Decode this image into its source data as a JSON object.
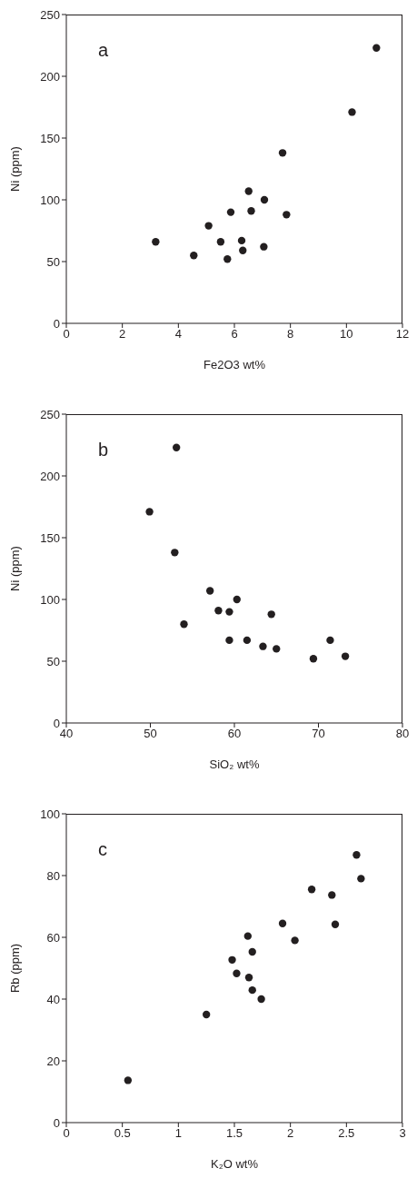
{
  "chart_data": [
    {
      "type": "scatter",
      "xlabel": "Fe2O3 wt%",
      "ylabel": "Ni (ppm)",
      "annotations": [
        "a"
      ],
      "marker": "circle",
      "xlim": [
        0,
        12
      ],
      "xticks": [
        0,
        2,
        4,
        6,
        8,
        10,
        12
      ],
      "ylim": [
        0,
        250
      ],
      "yticks": [
        0,
        50,
        100,
        150,
        200,
        250
      ],
      "series": [
        {
          "color": "#231f20",
          "x": [
            3.19,
            4.55,
            5.08,
            5.51,
            5.75,
            5.87,
            6.26,
            6.3,
            6.51,
            6.6,
            7.07,
            7.05,
            7.72,
            7.86,
            10.2,
            11.07
          ],
          "values": [
            66,
            55,
            79,
            66,
            52,
            90,
            67,
            59,
            107,
            91,
            100,
            62,
            138,
            88,
            171,
            223
          ]
        }
      ]
    },
    {
      "type": "scatter",
      "xlabel": "SiO₂ wt%",
      "ylabel": "Ni (ppm)",
      "annotations": [
        "b"
      ],
      "marker": "circle",
      "xlim": [
        40,
        80
      ],
      "xticks": [
        40,
        50,
        60,
        70,
        80
      ],
      "ylim": [
        0,
        250
      ],
      "yticks": [
        0,
        50,
        100,
        150,
        200,
        250
      ],
      "series": [
        {
          "color": "#231f20",
          "x": [
            53.1,
            49.9,
            52.9,
            57.1,
            60.3,
            58.1,
            59.4,
            64.4,
            54,
            59.4,
            61.5,
            63.4,
            65,
            69.4,
            71.4,
            73.2
          ],
          "values": [
            223,
            171,
            138,
            107,
            100,
            91,
            90,
            88,
            80,
            67,
            67,
            62,
            60,
            52,
            67,
            54
          ]
        }
      ]
    },
    {
      "type": "scatter",
      "xlabel": "K₂O wt%",
      "ylabel": "Rb (ppm)",
      "annotations": [
        "c"
      ],
      "marker": "circle",
      "xlim": [
        0,
        3
      ],
      "xticks": [
        0,
        0.5,
        1,
        1.5,
        2,
        2.5,
        3
      ],
      "ylim": [
        0,
        100
      ],
      "yticks": [
        0,
        20,
        40,
        60,
        80,
        100
      ],
      "series": [
        {
          "color": "#231f20",
          "x": [
            0.55,
            1.25,
            1.48,
            1.52,
            1.62,
            1.63,
            1.66,
            1.66,
            1.74,
            1.93,
            2.04,
            2.19,
            2.37,
            2.4,
            2.59,
            2.63
          ],
          "values": [
            13.7,
            35,
            52.7,
            48.3,
            60.4,
            47,
            55.3,
            42.9,
            40,
            64.5,
            59,
            75.5,
            73.7,
            64.2,
            86.7,
            79
          ]
        }
      ]
    }
  ]
}
